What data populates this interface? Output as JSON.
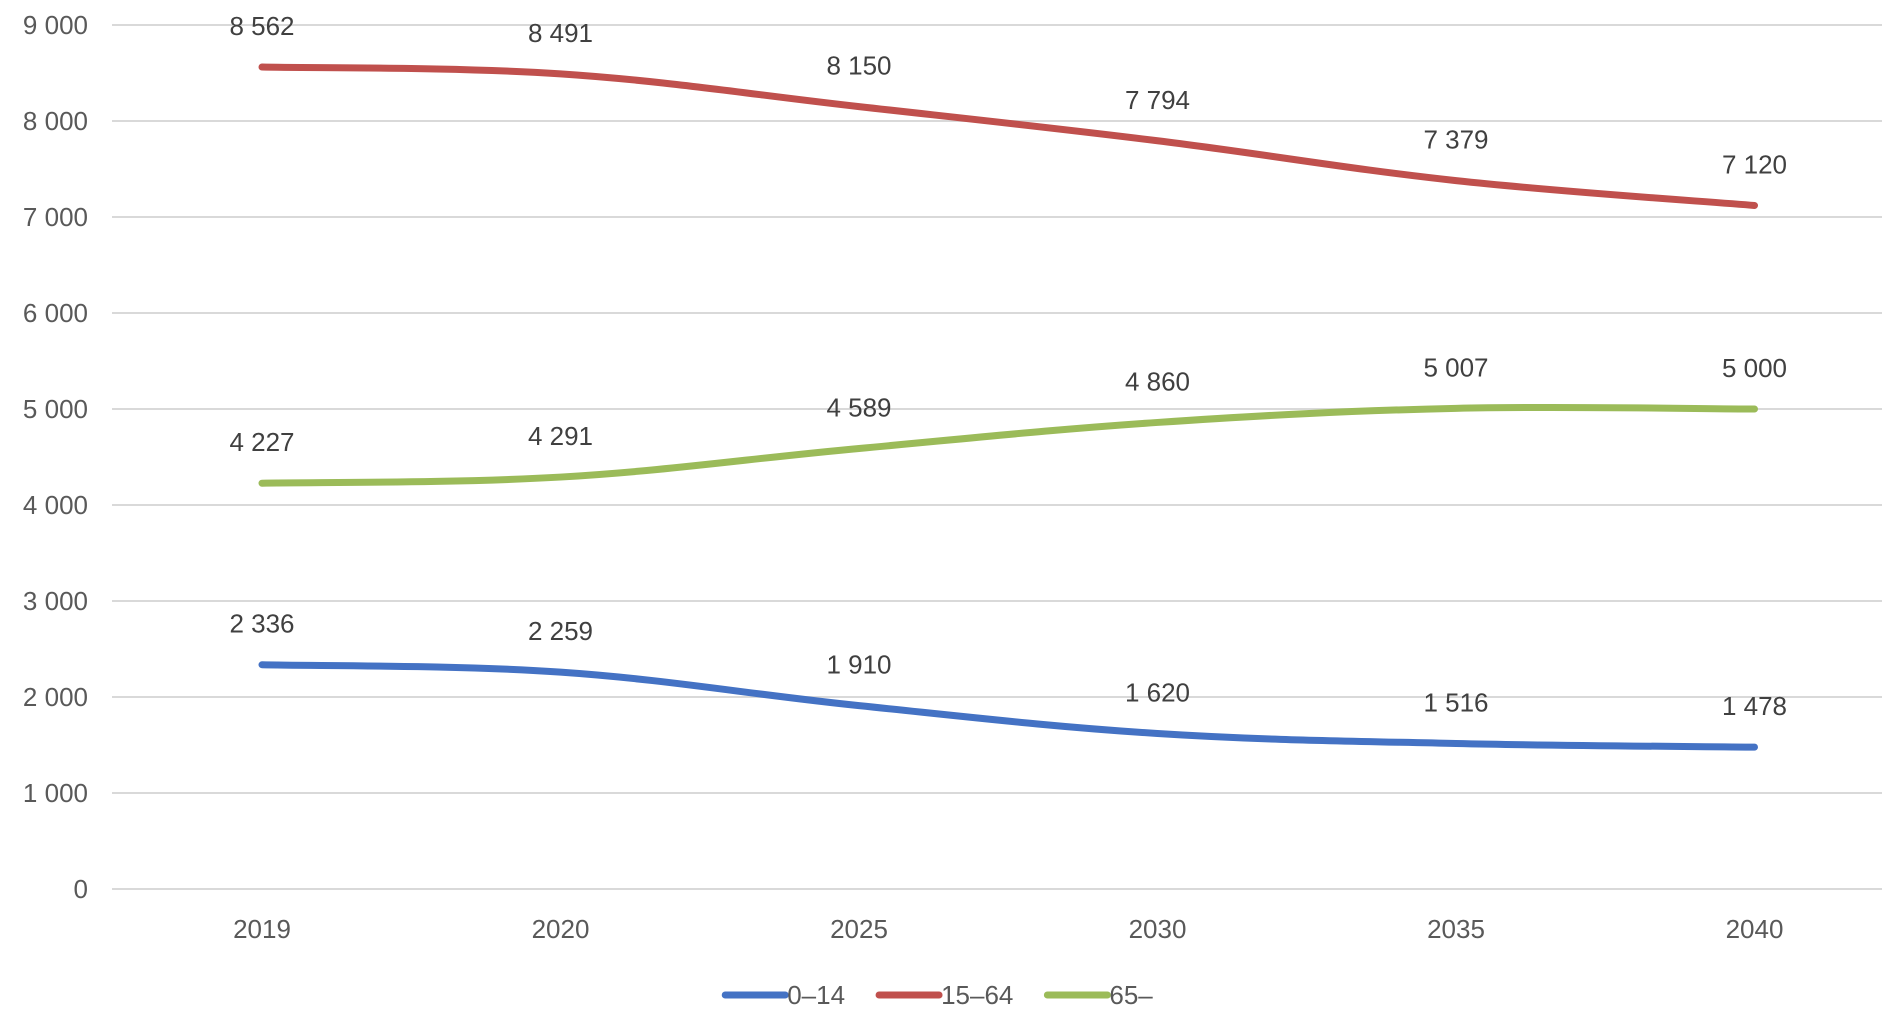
{
  "chart_data": {
    "type": "line",
    "categories": [
      "2019",
      "2020",
      "2025",
      "2030",
      "2035",
      "2040"
    ],
    "series": [
      {
        "name": "0–14",
        "color": "#4472c4",
        "values": [
          2336,
          2259,
          1910,
          1620,
          1516,
          1478
        ],
        "labels": [
          "2 336",
          "2 259",
          "1 910",
          "1 620",
          "1 516",
          "1 478"
        ]
      },
      {
        "name": "15–64",
        "color": "#c0504d",
        "values": [
          8562,
          8491,
          8150,
          7794,
          7379,
          7120
        ],
        "labels": [
          "8 562",
          "8 491",
          "8 150",
          "7 794",
          "7 379",
          "7 120"
        ]
      },
      {
        "name": "65–",
        "color": "#9bbb59",
        "values": [
          4227,
          4291,
          4589,
          4860,
          5007,
          5000
        ],
        "labels": [
          "4 227",
          "4 291",
          "4 589",
          "4 860",
          "5 007",
          "5 000"
        ]
      }
    ],
    "ylim": [
      0,
      9000
    ],
    "yticks": [
      0,
      1000,
      2000,
      3000,
      4000,
      5000,
      6000,
      7000,
      8000,
      9000
    ],
    "ytick_labels": [
      "0",
      "1 000",
      "2 000",
      "3 000",
      "4 000",
      "5 000",
      "6 000",
      "7 000",
      "8 000",
      "9 000"
    ],
    "grid": true,
    "legend_position": "bottom"
  }
}
